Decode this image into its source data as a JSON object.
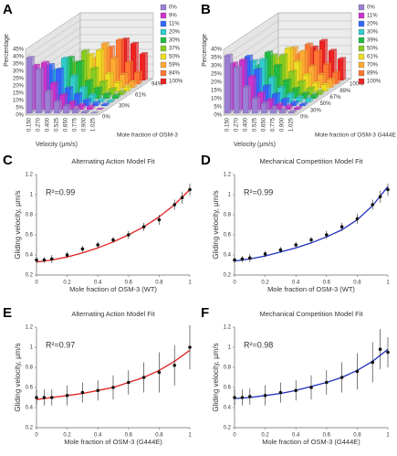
{
  "chart_data": [
    {
      "type": "bar3d",
      "label": "A",
      "ylabel": "Percentage",
      "xlabel": "Velocity (µm/s)",
      "depth_label": "Mole fraction of OSM-3",
      "categories": [
        "0.150",
        "0.270",
        "0.400",
        "0.525",
        "0.650",
        "0.775",
        "0.900",
        "1.025"
      ],
      "ylim": [
        0,
        45
      ],
      "yticks": [
        {
          "value": 0,
          "label": "0%"
        },
        {
          "value": 5,
          "label": "5%"
        },
        {
          "value": 10,
          "label": "10%"
        },
        {
          "value": 15,
          "label": "15%"
        },
        {
          "value": 20,
          "label": "20%"
        },
        {
          "value": 25,
          "label": "25%"
        },
        {
          "value": 30,
          "label": "30%"
        },
        {
          "value": 35,
          "label": "35%"
        },
        {
          "value": 40,
          "label": "40%"
        },
        {
          "value": 45,
          "label": "45%"
        }
      ],
      "depth_ticks": [
        "0%",
        "30%",
        "61%",
        "94%"
      ],
      "series": [
        {
          "name": "0%",
          "color": "#9b7fd4",
          "values": [
            38,
            30,
            15,
            8,
            5,
            3,
            1,
            0
          ]
        },
        {
          "name": "9%",
          "color": "#cc33cc",
          "values": [
            30,
            32,
            18,
            10,
            5,
            3,
            2,
            0
          ]
        },
        {
          "name": "11%",
          "color": "#3366ff",
          "values": [
            20,
            28,
            25,
            12,
            8,
            4,
            2,
            1
          ]
        },
        {
          "name": "20%",
          "color": "#33cccc",
          "values": [
            12,
            22,
            30,
            18,
            10,
            5,
            2,
            1
          ]
        },
        {
          "name": "30%",
          "color": "#22bb44",
          "values": [
            8,
            15,
            28,
            25,
            12,
            7,
            3,
            2
          ]
        },
        {
          "name": "37%",
          "color": "#88cc22",
          "values": [
            5,
            10,
            22,
            30,
            18,
            9,
            4,
            2
          ]
        },
        {
          "name": "50%",
          "color": "#eedd22",
          "values": [
            3,
            8,
            15,
            25,
            28,
            12,
            6,
            3
          ]
        },
        {
          "name": "59%",
          "color": "#ffaa33",
          "values": [
            2,
            5,
            10,
            20,
            30,
            20,
            9,
            4
          ]
        },
        {
          "name": "84%",
          "color": "#ff7733",
          "values": [
            1,
            3,
            6,
            12,
            25,
            30,
            15,
            8
          ]
        },
        {
          "name": "100%",
          "color": "#ee2222",
          "values": [
            0,
            2,
            4,
            8,
            15,
            28,
            25,
            18
          ]
        }
      ]
    },
    {
      "type": "bar3d",
      "label": "B",
      "ylabel": "Percentage",
      "xlabel": "Velocity (µm/s)",
      "depth_label": "Mole fraction of OSM-3 G444E",
      "categories": [
        "0.150",
        "0.270",
        "0.400",
        "0.525",
        "0.650",
        "0.775",
        "0.900",
        "1.025"
      ],
      "ylim": [
        0,
        40
      ],
      "yticks": [
        {
          "value": 0,
          "label": "0%"
        },
        {
          "value": 5,
          "label": "5%"
        },
        {
          "value": 10,
          "label": "10%"
        },
        {
          "value": 15,
          "label": "15%"
        },
        {
          "value": 20,
          "label": "20%"
        },
        {
          "value": 25,
          "label": "25%"
        },
        {
          "value": 30,
          "label": "30%"
        },
        {
          "value": 35,
          "label": "35%"
        },
        {
          "value": 40,
          "label": "40%"
        }
      ],
      "depth_ticks": [
        "0%",
        "30%",
        "50%",
        "67%",
        "89%",
        "100%"
      ],
      "series": [
        {
          "name": "0%",
          "color": "#9b7fd4",
          "values": [
            35,
            28,
            16,
            9,
            6,
            3,
            2,
            1
          ]
        },
        {
          "name": "11%",
          "color": "#cc33cc",
          "values": [
            28,
            30,
            20,
            10,
            6,
            3,
            2,
            1
          ]
        },
        {
          "name": "20%",
          "color": "#3366ff",
          "values": [
            22,
            30,
            22,
            12,
            7,
            4,
            2,
            1
          ]
        },
        {
          "name": "30%",
          "color": "#33cccc",
          "values": [
            15,
            25,
            26,
            15,
            9,
            5,
            3,
            2
          ]
        },
        {
          "name": "39%",
          "color": "#22bb44",
          "values": [
            10,
            20,
            28,
            20,
            11,
            6,
            3,
            2
          ]
        },
        {
          "name": "50%",
          "color": "#88cc22",
          "values": [
            8,
            16,
            24,
            24,
            14,
            8,
            4,
            2
          ]
        },
        {
          "name": "61%",
          "color": "#eedd22",
          "values": [
            5,
            12,
            20,
            26,
            18,
            10,
            5,
            4
          ]
        },
        {
          "name": "70%",
          "color": "#ffaa33",
          "values": [
            4,
            9,
            15,
            24,
            22,
            13,
            8,
            5
          ]
        },
        {
          "name": "89%",
          "color": "#ff7733",
          "values": [
            3,
            6,
            10,
            18,
            24,
            20,
            12,
            7
          ]
        },
        {
          "name": "100%",
          "color": "#ee2222",
          "values": [
            2,
            4,
            7,
            12,
            20,
            24,
            18,
            13
          ]
        }
      ]
    },
    {
      "type": "scatter",
      "label": "C",
      "title": "Alternating Action Model Fit",
      "color": "#e02020",
      "annotation": "R²=0.99",
      "xlabel": "Mole fraction of OSM-3 (WT)",
      "ylabel": "Gliding velocity, µm/s",
      "xlim": [
        0,
        1
      ],
      "xticks": [
        0,
        0.2,
        0.4,
        0.6,
        0.8,
        1
      ],
      "ylim": [
        0.2,
        1.2
      ],
      "yticks": [
        0.2,
        0.4,
        0.6,
        0.8,
        1,
        1.2
      ],
      "points": {
        "x": [
          0,
          0.05,
          0.1,
          0.2,
          0.3,
          0.4,
          0.5,
          0.6,
          0.7,
          0.8,
          0.9,
          0.95,
          1
        ],
        "values": [
          0.35,
          0.35,
          0.36,
          0.4,
          0.46,
          0.5,
          0.55,
          0.6,
          0.68,
          0.75,
          0.9,
          0.97,
          1.05
        ],
        "errors": [
          0.03,
          0.03,
          0.04,
          0.03,
          0.03,
          0.03,
          0.03,
          0.04,
          0.04,
          0.05,
          0.05,
          0.06,
          0.06
        ]
      },
      "fit": {
        "x": [
          0,
          0.1,
          0.2,
          0.3,
          0.4,
          0.5,
          0.6,
          0.7,
          0.8,
          0.9,
          1
        ],
        "values": [
          0.33,
          0.35,
          0.38,
          0.42,
          0.47,
          0.53,
          0.6,
          0.68,
          0.78,
          0.9,
          1.05
        ]
      }
    },
    {
      "type": "scatter",
      "label": "D",
      "title": "Mechanical Competition Model Fit",
      "color": "#2030c0",
      "annotation": "R²=0.99",
      "xlabel": "Mole fraction of OSM-3 (WT)",
      "ylabel": "Gliding velocity, µm/s",
      "xlim": [
        0,
        1
      ],
      "xticks": [
        0,
        0.2,
        0.4,
        0.6,
        0.8,
        1
      ],
      "ylim": [
        0.2,
        1.2
      ],
      "yticks": [
        0.2,
        0.4,
        0.6,
        0.8,
        1,
        1.2
      ],
      "points": {
        "x": [
          0,
          0.05,
          0.1,
          0.2,
          0.3,
          0.4,
          0.5,
          0.6,
          0.7,
          0.8,
          0.9,
          0.95,
          1
        ],
        "values": [
          0.35,
          0.36,
          0.37,
          0.41,
          0.45,
          0.5,
          0.55,
          0.6,
          0.68,
          0.76,
          0.9,
          0.98,
          1.05
        ],
        "errors": [
          0.03,
          0.03,
          0.04,
          0.03,
          0.03,
          0.03,
          0.03,
          0.04,
          0.04,
          0.05,
          0.05,
          0.06,
          0.06
        ]
      },
      "fit": {
        "x": [
          0,
          0.1,
          0.2,
          0.3,
          0.4,
          0.5,
          0.6,
          0.7,
          0.8,
          0.9,
          1
        ],
        "values": [
          0.34,
          0.36,
          0.39,
          0.43,
          0.47,
          0.52,
          0.58,
          0.65,
          0.75,
          0.89,
          1.08
        ]
      }
    },
    {
      "type": "scatter",
      "label": "E",
      "title": "Alternating Action Model Fit",
      "color": "#e02020",
      "annotation": "R²=0.97",
      "xlabel": "Mole fraction of OSM-3 (G444E)",
      "ylabel": "Gliding velocity, µm/s",
      "xlim": [
        0,
        1
      ],
      "xticks": [
        0,
        0.2,
        0.4,
        0.6,
        0.8,
        1
      ],
      "ylim": [
        0.2,
        1.2
      ],
      "yticks": [
        0.2,
        0.4,
        0.6,
        0.8,
        1,
        1.2
      ],
      "points": {
        "x": [
          0,
          0.05,
          0.1,
          0.2,
          0.3,
          0.4,
          0.5,
          0.6,
          0.7,
          0.8,
          0.9,
          1
        ],
        "values": [
          0.5,
          0.5,
          0.5,
          0.52,
          0.55,
          0.57,
          0.6,
          0.65,
          0.7,
          0.75,
          0.82,
          1
        ],
        "errors": [
          0.08,
          0.08,
          0.08,
          0.1,
          0.1,
          0.1,
          0.12,
          0.12,
          0.15,
          0.2,
          0.2,
          0.22
        ]
      },
      "fit": {
        "x": [
          0,
          0.1,
          0.2,
          0.3,
          0.4,
          0.5,
          0.6,
          0.7,
          0.8,
          0.9,
          1
        ],
        "values": [
          0.48,
          0.5,
          0.52,
          0.54,
          0.57,
          0.6,
          0.65,
          0.7,
          0.77,
          0.86,
          0.97
        ]
      }
    },
    {
      "type": "scatter",
      "label": "F",
      "title": "Mechanical Competition Model Fit",
      "color": "#2030c0",
      "annotation": "R²=0.98",
      "xlabel": "Mole fraction of OSM-3 (G444E)",
      "ylabel": "Gliding velocity, µm/s",
      "xlim": [
        0,
        1
      ],
      "xticks": [
        0,
        0.2,
        0.4,
        0.6,
        0.8,
        1
      ],
      "ylim": [
        0.2,
        1.2
      ],
      "yticks": [
        0.2,
        0.4,
        0.6,
        0.8,
        1,
        1.2
      ],
      "points": {
        "x": [
          0,
          0.05,
          0.1,
          0.2,
          0.3,
          0.4,
          0.5,
          0.6,
          0.7,
          0.8,
          0.9,
          0.95,
          1
        ],
        "values": [
          0.5,
          0.5,
          0.51,
          0.52,
          0.55,
          0.57,
          0.6,
          0.65,
          0.7,
          0.76,
          0.85,
          0.98,
          0.95
        ],
        "errors": [
          0.08,
          0.08,
          0.08,
          0.1,
          0.1,
          0.1,
          0.12,
          0.12,
          0.15,
          0.18,
          0.2,
          0.2,
          0.15
        ]
      },
      "fit": {
        "x": [
          0,
          0.1,
          0.2,
          0.3,
          0.4,
          0.5,
          0.6,
          0.7,
          0.8,
          0.9,
          1
        ],
        "values": [
          0.49,
          0.5,
          0.52,
          0.54,
          0.57,
          0.61,
          0.65,
          0.7,
          0.77,
          0.86,
          0.98
        ]
      }
    }
  ]
}
